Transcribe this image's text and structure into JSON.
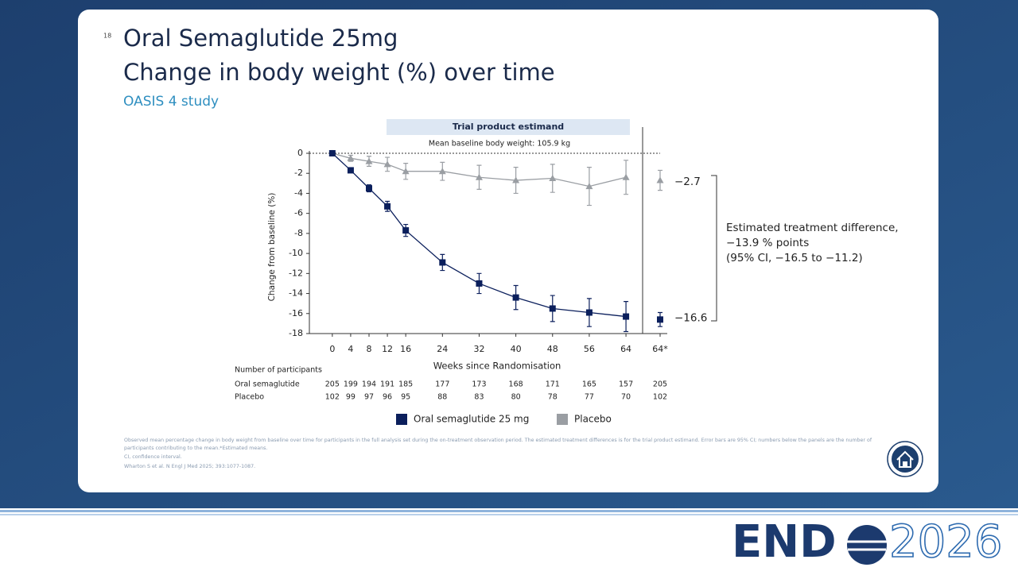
{
  "header": {
    "page_number": "18",
    "title_lines": [
      "Oral Semaglutide 25mg",
      "Change in body weight (%) over time"
    ],
    "subtitle": "OASIS 4 study"
  },
  "chart_data": {
    "type": "line",
    "panel_label": "Trial product estimand",
    "baseline_note": "Mean baseline body weight: 105.9 kg",
    "y_label": "Change from baseline (%)",
    "x_label": "Weeks since Randomisation",
    "x": [
      0,
      4,
      8,
      12,
      16,
      24,
      32,
      40,
      48,
      56,
      64
    ],
    "xlim": [
      -5,
      73
    ],
    "xticks": [
      0,
      4,
      8,
      12,
      16,
      24,
      32,
      40,
      48,
      56,
      64
    ],
    "ylim": [
      -18,
      0
    ],
    "yticks": [
      0,
      -2,
      -4,
      -6,
      -8,
      -10,
      -12,
      -14,
      -16,
      -18
    ],
    "series": [
      {
        "name": "Oral semaglutide 25 mg",
        "color": "#0b1f5c",
        "marker": "square",
        "values": [
          0,
          -1.7,
          -3.5,
          -5.3,
          -7.7,
          -10.9,
          -13.0,
          -14.4,
          -15.5,
          -15.9,
          -16.3
        ],
        "errors": [
          0.1,
          0.2,
          0.35,
          0.5,
          0.6,
          0.8,
          1.0,
          1.2,
          1.3,
          1.4,
          1.5
        ],
        "estimate": -16.6,
        "estimate_label": "−16.6",
        "estimate_error": 0.7
      },
      {
        "name": "Placebo",
        "color": "#9a9ea3",
        "marker": "triangle",
        "values": [
          0,
          -0.5,
          -0.8,
          -1.1,
          -1.8,
          -1.8,
          -2.4,
          -2.7,
          -2.5,
          -3.3,
          -2.4
        ],
        "errors": [
          0.1,
          0.3,
          0.5,
          0.7,
          0.8,
          0.9,
          1.2,
          1.3,
          1.4,
          1.9,
          1.7
        ],
        "estimate": -2.7,
        "estimate_label": "−2.7",
        "estimate_error": 1.0
      }
    ],
    "estimate_tick": "64*",
    "annotation": [
      "Estimated treatment difference,",
      "−13.9 % points",
      "(95% CI, −16.5 to −11.2)"
    ],
    "participants": {
      "title": "Number of participants",
      "rows": [
        {
          "name": "Oral semaglutide",
          "counts": [
            205,
            199,
            194,
            191,
            185,
            177,
            173,
            168,
            171,
            165,
            157,
            205
          ]
        },
        {
          "name": "Placebo",
          "counts": [
            102,
            99,
            97,
            96,
            95,
            88,
            83,
            80,
            78,
            77,
            70,
            102
          ]
        }
      ]
    }
  },
  "footnotes": [
    "Observed mean percentage change in body weight from baseline over time for participants in the full analysis set during the on-treatment observation period. The estimated treatment differences is for the trial product estimand. Error bars are 95% CI; numbers below the panels are the number of",
    "participants contributing to the mean.*Estimated means.",
    "CI, confidence interval.",
    "Wharton S et al. N Engl J Med 2025; 393:1077-1087."
  ],
  "logo": {
    "left": "END",
    "right": "2026"
  }
}
